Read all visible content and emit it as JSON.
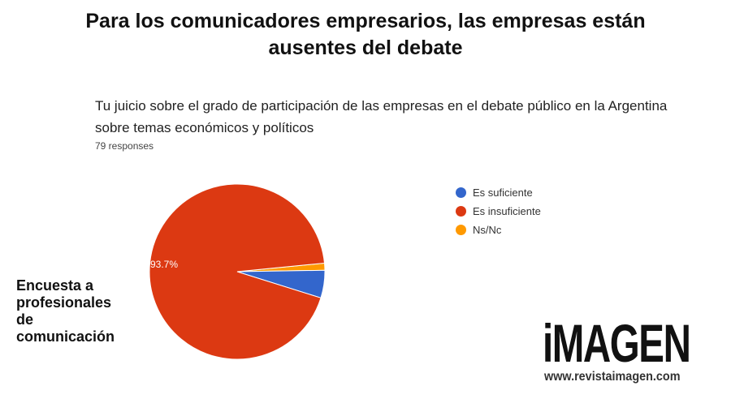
{
  "header": {
    "title_line1": "Para los comunicadores empresarios, las empresas están",
    "title_line2": "ausentes del debate"
  },
  "side_caption": [
    "Encuesta a",
    "profesionales",
    "de",
    "comunicación"
  ],
  "logo": {
    "text": "imaGen",
    "url": "www.revistaimagen.com"
  },
  "chart_data": {
    "type": "pie",
    "title": "Tu juicio sobre el grado de participación de las empresas en el debate público en la Argentina sobre temas económicos y políticos",
    "subtitle": "79 responses",
    "categories": [
      "Es suficiente",
      "Es insuficiente",
      "Ns/Nc"
    ],
    "values": [
      5.1,
      93.7,
      1.3
    ],
    "colors": [
      "#3366cc",
      "#dc3912",
      "#ff9900"
    ],
    "data_labels": [
      "",
      "93.7%",
      ""
    ],
    "legend": "right"
  }
}
